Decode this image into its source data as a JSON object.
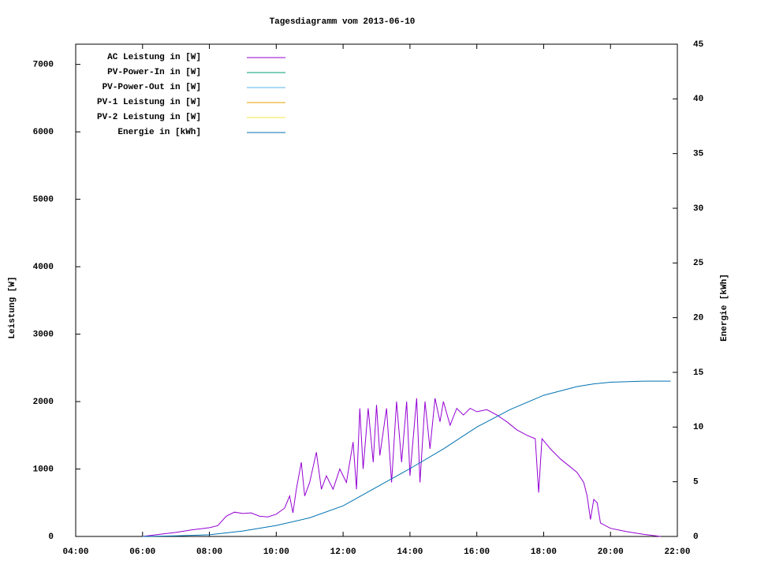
{
  "chart_data": {
    "type": "line",
    "title": "Tagesdiagramm vom 2013-06-10",
    "ylabel": "Leistung [W]",
    "y2label": "Energie [kWh]",
    "legend": "top-left",
    "xlim": [
      4,
      22
    ],
    "xticks": [
      {
        "value": 4,
        "label": "04:00"
      },
      {
        "value": 6,
        "label": "06:00"
      },
      {
        "value": 8,
        "label": "08:00"
      },
      {
        "value": 10,
        "label": "10:00"
      },
      {
        "value": 12,
        "label": "12:00"
      },
      {
        "value": 14,
        "label": "14:00"
      },
      {
        "value": 16,
        "label": "16:00"
      },
      {
        "value": 18,
        "label": "18:00"
      },
      {
        "value": 20,
        "label": "20:00"
      },
      {
        "value": 22,
        "label": "22:00"
      }
    ],
    "ylim": [
      0,
      7300
    ],
    "yticks": [
      0,
      1000,
      2000,
      3000,
      4000,
      5000,
      6000,
      7000
    ],
    "y2lim": [
      0,
      45
    ],
    "y2ticks": [
      0,
      5,
      10,
      15,
      20,
      25,
      30,
      35,
      40,
      45
    ],
    "series": [
      {
        "name": "AC Leistung in [W]",
        "color": "#9400d3",
        "x": [
          6.0,
          6.5,
          7.0,
          7.5,
          8.0,
          8.25,
          8.5,
          8.75,
          9.0,
          9.25,
          9.5,
          9.75,
          10.0,
          10.25,
          10.4,
          10.5,
          10.6,
          10.75,
          10.85,
          11.0,
          11.2,
          11.35,
          11.5,
          11.7,
          11.9,
          12.1,
          12.3,
          12.4,
          12.5,
          12.6,
          12.75,
          12.9,
          13.0,
          13.1,
          13.3,
          13.45,
          13.6,
          13.75,
          13.9,
          14.0,
          14.2,
          14.3,
          14.45,
          14.6,
          14.75,
          14.9,
          15.0,
          15.2,
          15.4,
          15.6,
          15.8,
          16.0,
          16.3,
          16.6,
          16.9,
          17.2,
          17.5,
          17.75,
          17.85,
          17.95,
          18.2,
          18.5,
          18.75,
          19.0,
          19.2,
          19.3,
          19.4,
          19.5,
          19.6,
          19.7,
          20.0,
          20.5,
          21.0,
          21.5
        ],
        "values": [
          0,
          30,
          60,
          100,
          130,
          160,
          300,
          360,
          340,
          350,
          300,
          290,
          330,
          420,
          600,
          350,
          700,
          1100,
          600,
          800,
          1250,
          700,
          900,
          700,
          1000,
          800,
          1400,
          700,
          1900,
          1000,
          1900,
          1100,
          1950,
          1200,
          1900,
          800,
          2000,
          1100,
          2000,
          900,
          2050,
          800,
          2000,
          1300,
          2050,
          1700,
          2000,
          1650,
          1900,
          1800,
          1900,
          1850,
          1880,
          1800,
          1700,
          1580,
          1500,
          1450,
          650,
          1450,
          1300,
          1150,
          1050,
          950,
          800,
          600,
          250,
          550,
          500,
          200,
          120,
          70,
          30,
          0
        ]
      },
      {
        "name": "PV-Power-In in [W]",
        "color": "#009e73",
        "x": [],
        "values": []
      },
      {
        "name": "PV-Power-Out in [W]",
        "color": "#56b4e9",
        "x": [],
        "values": []
      },
      {
        "name": "PV-1 Leistung in [W]",
        "color": "#e69f00",
        "x": [],
        "values": []
      },
      {
        "name": "PV-2 Leistung in [W]",
        "color": "#f0e442",
        "x": [],
        "values": []
      },
      {
        "name": "Energie in [kWh]",
        "color": "#0072b2",
        "axis": "y2",
        "x": [
          6,
          7,
          8,
          9,
          10,
          11,
          12,
          13,
          14,
          15,
          16,
          17,
          18,
          19,
          19.5,
          20,
          21,
          21.8
        ],
        "values": [
          0,
          0.05,
          0.15,
          0.5,
          1,
          1.7,
          2.8,
          4.5,
          6.2,
          8,
          10,
          11.6,
          12.9,
          13.7,
          13.95,
          14.1,
          14.2,
          14.2
        ]
      }
    ]
  }
}
